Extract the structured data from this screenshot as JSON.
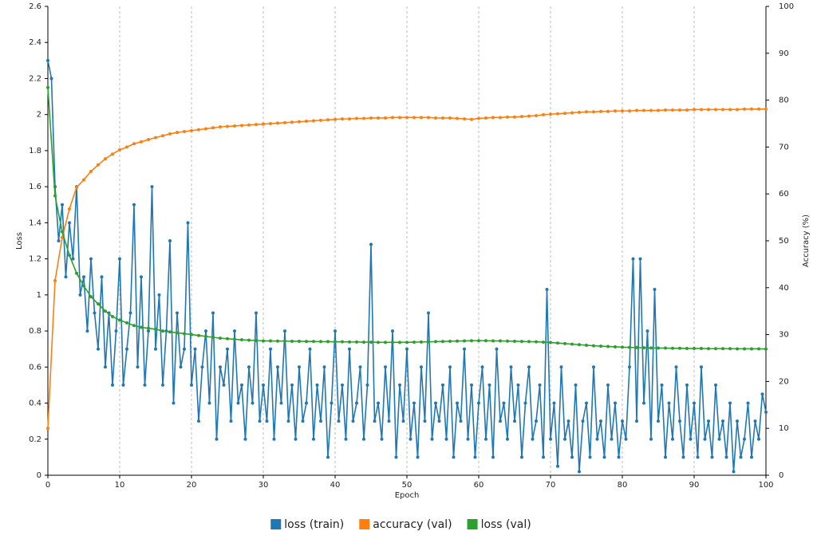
{
  "chart_data": {
    "type": "line",
    "x_label": "Epoch",
    "y_label": "Loss",
    "y2_label": "Accuracy (%)",
    "xlim": [
      0,
      100
    ],
    "xticks": [
      0,
      10,
      20,
      30,
      40,
      50,
      60,
      70,
      80,
      90,
      100
    ],
    "ylim": [
      0,
      2.6
    ],
    "yticks": [
      0,
      0.2,
      0.4,
      0.6,
      0.8,
      1,
      1.2,
      1.4,
      1.6,
      1.8,
      2,
      2.2,
      2.4,
      2.6
    ],
    "y2lim": [
      0,
      100
    ],
    "y2ticks": [
      0,
      10,
      20,
      30,
      40,
      50,
      60,
      70,
      80,
      90,
      100
    ],
    "grid": "x",
    "legend": "bottom",
    "series": [
      {
        "name": "loss (train)",
        "color": "#1f77b4",
        "x": [
          0,
          0.5,
          1,
          1.5,
          2,
          2.5,
          3,
          3.5,
          4,
          4.5,
          5,
          5.5,
          6,
          6.5,
          7,
          7.5,
          8,
          8.5,
          9,
          9.5,
          10,
          10.5,
          11,
          11.5,
          12,
          12.5,
          13,
          13.5,
          14,
          14.5,
          15,
          15.5,
          16,
          16.5,
          17,
          17.5,
          18,
          18.5,
          19,
          19.5,
          20,
          20.5,
          21,
          21.5,
          22,
          22.5,
          23,
          23.5,
          24,
          24.5,
          25,
          25.5,
          26,
          26.5,
          27,
          27.5,
          28,
          28.5,
          29,
          29.5,
          30,
          30.5,
          31,
          31.5,
          32,
          32.5,
          33,
          33.5,
          34,
          34.5,
          35,
          35.5,
          36,
          36.5,
          37,
          37.5,
          38,
          38.5,
          39,
          39.5,
          40,
          40.5,
          41,
          41.5,
          42,
          42.5,
          43,
          43.5,
          44,
          44.5,
          45,
          45.5,
          46,
          46.5,
          47,
          47.5,
          48,
          48.5,
          49,
          49.5,
          50,
          50.5,
          51,
          51.5,
          52,
          52.5,
          53,
          53.5,
          54,
          54.5,
          55,
          55.5,
          56,
          56.5,
          57,
          57.5,
          58,
          58.5,
          59,
          59.5,
          60,
          60.5,
          61,
          61.5,
          62,
          62.5,
          63,
          63.5,
          64,
          64.5,
          65,
          65.5,
          66,
          66.5,
          67,
          67.5,
          68,
          68.5,
          69,
          69.5,
          70,
          70.5,
          71,
          71.5,
          72,
          72.5,
          73,
          73.5,
          74,
          74.5,
          75,
          75.5,
          76,
          76.5,
          77,
          77.5,
          78,
          78.5,
          79,
          79.5,
          80,
          80.5,
          81,
          81.5,
          82,
          82.5,
          83,
          83.5,
          84,
          84.5,
          85,
          85.5,
          86,
          86.5,
          87,
          87.5,
          88,
          88.5,
          89,
          89.5,
          90,
          90.5,
          91,
          91.5,
          92,
          92.5,
          93,
          93.5,
          94,
          94.5,
          95,
          95.5,
          96,
          96.5,
          97,
          97.5,
          98,
          98.5,
          99,
          99.5,
          100
        ],
        "values": [
          2.3,
          2.2,
          1.6,
          1.3,
          1.5,
          1.1,
          1.4,
          1.2,
          1.6,
          1.0,
          1.1,
          0.8,
          1.2,
          0.9,
          0.7,
          1.1,
          0.6,
          0.9,
          0.5,
          0.8,
          1.2,
          0.5,
          0.7,
          0.9,
          1.5,
          0.6,
          1.1,
          0.5,
          0.8,
          1.6,
          0.7,
          1.0,
          0.5,
          0.8,
          1.3,
          0.4,
          0.9,
          0.6,
          0.7,
          1.4,
          0.5,
          0.7,
          0.3,
          0.6,
          0.8,
          0.4,
          0.9,
          0.2,
          0.6,
          0.5,
          0.7,
          0.3,
          0.8,
          0.4,
          0.5,
          0.2,
          0.6,
          0.4,
          0.9,
          0.3,
          0.5,
          0.3,
          0.7,
          0.2,
          0.6,
          0.4,
          0.8,
          0.3,
          0.5,
          0.2,
          0.6,
          0.3,
          0.4,
          0.7,
          0.2,
          0.5,
          0.3,
          0.6,
          0.1,
          0.4,
          0.8,
          0.3,
          0.5,
          0.2,
          0.7,
          0.3,
          0.4,
          0.6,
          0.2,
          0.5,
          1.28,
          0.3,
          0.4,
          0.2,
          0.6,
          0.3,
          0.8,
          0.1,
          0.5,
          0.3,
          0.7,
          0.2,
          0.4,
          0.1,
          0.6,
          0.3,
          0.9,
          0.2,
          0.4,
          0.3,
          0.5,
          0.2,
          0.6,
          0.1,
          0.4,
          0.3,
          0.7,
          0.2,
          0.5,
          0.1,
          0.4,
          0.6,
          0.2,
          0.5,
          0.1,
          0.7,
          0.3,
          0.4,
          0.2,
          0.6,
          0.3,
          0.5,
          0.1,
          0.4,
          0.6,
          0.2,
          0.3,
          0.5,
          0.1,
          1.03,
          0.2,
          0.4,
          0.05,
          0.6,
          0.2,
          0.3,
          0.1,
          0.5,
          0.02,
          0.3,
          0.4,
          0.1,
          0.6,
          0.2,
          0.3,
          0.1,
          0.5,
          0.2,
          0.4,
          0.1,
          0.3,
          0.2,
          0.6,
          1.2,
          0.3,
          1.2,
          0.4,
          0.8,
          0.2,
          1.03,
          0.3,
          0.5,
          0.1,
          0.4,
          0.2,
          0.6,
          0.3,
          0.1,
          0.5,
          0.2,
          0.4,
          0.1,
          0.6,
          0.2,
          0.3,
          0.1,
          0.5,
          0.2,
          0.3,
          0.1,
          0.4,
          0.02,
          0.3,
          0.1,
          0.2,
          0.4,
          0.1,
          0.3,
          0.2,
          0.45,
          0.35
        ]
      },
      {
        "name": "accuracy (val)",
        "color": "#ff7f0e",
        "axis": "y2",
        "x": [
          0,
          1,
          2,
          3,
          4,
          5,
          6,
          7,
          8,
          9,
          10,
          11,
          12,
          13,
          14,
          15,
          16,
          17,
          18,
          19,
          20,
          21,
          22,
          23,
          24,
          25,
          26,
          27,
          28,
          29,
          30,
          31,
          32,
          33,
          34,
          35,
          36,
          37,
          38,
          39,
          40,
          41,
          42,
          43,
          44,
          45,
          46,
          47,
          48,
          49,
          50,
          51,
          52,
          53,
          54,
          55,
          56,
          57,
          58,
          59,
          60,
          61,
          62,
          63,
          64,
          65,
          66,
          67,
          68,
          69,
          70,
          71,
          72,
          73,
          74,
          75,
          76,
          77,
          78,
          79,
          80,
          81,
          82,
          83,
          84,
          85,
          86,
          87,
          88,
          89,
          90,
          91,
          92,
          93,
          94,
          95,
          96,
          97,
          98,
          99,
          100
        ],
        "values": [
          10,
          41.5,
          50.7,
          56.8,
          61.4,
          63,
          64.8,
          66.2,
          67.5,
          68.5,
          69.4,
          70,
          70.7,
          71.1,
          71.6,
          72,
          72.4,
          72.8,
          73.1,
          73.3,
          73.5,
          73.7,
          73.9,
          74.1,
          74.3,
          74.4,
          74.5,
          74.6,
          74.7,
          74.8,
          74.9,
          75,
          75.1,
          75.2,
          75.3,
          75.4,
          75.5,
          75.6,
          75.7,
          75.8,
          75.9,
          76,
          76,
          76.1,
          76.1,
          76.2,
          76.2,
          76.2,
          76.3,
          76.3,
          76.3,
          76.3,
          76.3,
          76.3,
          76.2,
          76.2,
          76.2,
          76.1,
          76,
          75.9,
          76.1,
          76.2,
          76.3,
          76.3,
          76.4,
          76.4,
          76.5,
          76.6,
          76.7,
          76.9,
          77,
          77.1,
          77.2,
          77.3,
          77.4,
          77.5,
          77.5,
          77.6,
          77.6,
          77.7,
          77.7,
          77.7,
          77.8,
          77.8,
          77.8,
          77.8,
          77.9,
          77.9,
          77.9,
          77.9,
          78,
          78,
          78,
          78,
          78,
          78,
          78,
          78.1,
          78.1,
          78.1,
          78.1
        ]
      },
      {
        "name": "loss (val)",
        "color": "#2ca02c",
        "x": [
          0,
          1,
          2,
          3,
          4,
          5,
          6,
          7,
          8,
          9,
          10,
          11,
          12,
          13,
          14,
          15,
          16,
          17,
          18,
          19,
          20,
          21,
          22,
          23,
          24,
          25,
          26,
          27,
          28,
          29,
          30,
          31,
          32,
          33,
          34,
          35,
          36,
          37,
          38,
          39,
          40,
          41,
          42,
          43,
          44,
          45,
          46,
          47,
          48,
          49,
          50,
          51,
          52,
          53,
          54,
          55,
          56,
          57,
          58,
          59,
          60,
          61,
          62,
          63,
          64,
          65,
          66,
          67,
          68,
          69,
          70,
          71,
          72,
          73,
          74,
          75,
          76,
          77,
          78,
          79,
          80,
          81,
          82,
          83,
          84,
          85,
          86,
          87,
          88,
          89,
          90,
          91,
          92,
          93,
          94,
          95,
          96,
          97,
          98,
          99,
          100
        ],
        "values": [
          2.15,
          1.55,
          1.35,
          1.22,
          1.12,
          1.05,
          0.99,
          0.95,
          0.91,
          0.88,
          0.86,
          0.845,
          0.83,
          0.82,
          0.815,
          0.81,
          0.8,
          0.795,
          0.79,
          0.785,
          0.78,
          0.775,
          0.77,
          0.765,
          0.76,
          0.757,
          0.754,
          0.751,
          0.749,
          0.747,
          0.745,
          0.745,
          0.744,
          0.744,
          0.743,
          0.743,
          0.742,
          0.742,
          0.741,
          0.741,
          0.74,
          0.74,
          0.739,
          0.739,
          0.738,
          0.738,
          0.737,
          0.737,
          0.737,
          0.737,
          0.737,
          0.738,
          0.739,
          0.74,
          0.741,
          0.742,
          0.743,
          0.744,
          0.745,
          0.746,
          0.746,
          0.746,
          0.745,
          0.745,
          0.744,
          0.743,
          0.742,
          0.741,
          0.74,
          0.738,
          0.736,
          0.733,
          0.73,
          0.727,
          0.724,
          0.721,
          0.718,
          0.716,
          0.714,
          0.712,
          0.71,
          0.709,
          0.708,
          0.707,
          0.706,
          0.705,
          0.705,
          0.704,
          0.704,
          0.703,
          0.703,
          0.703,
          0.702,
          0.702,
          0.702,
          0.702,
          0.701,
          0.701,
          0.701,
          0.701,
          0.7
        ]
      }
    ]
  }
}
